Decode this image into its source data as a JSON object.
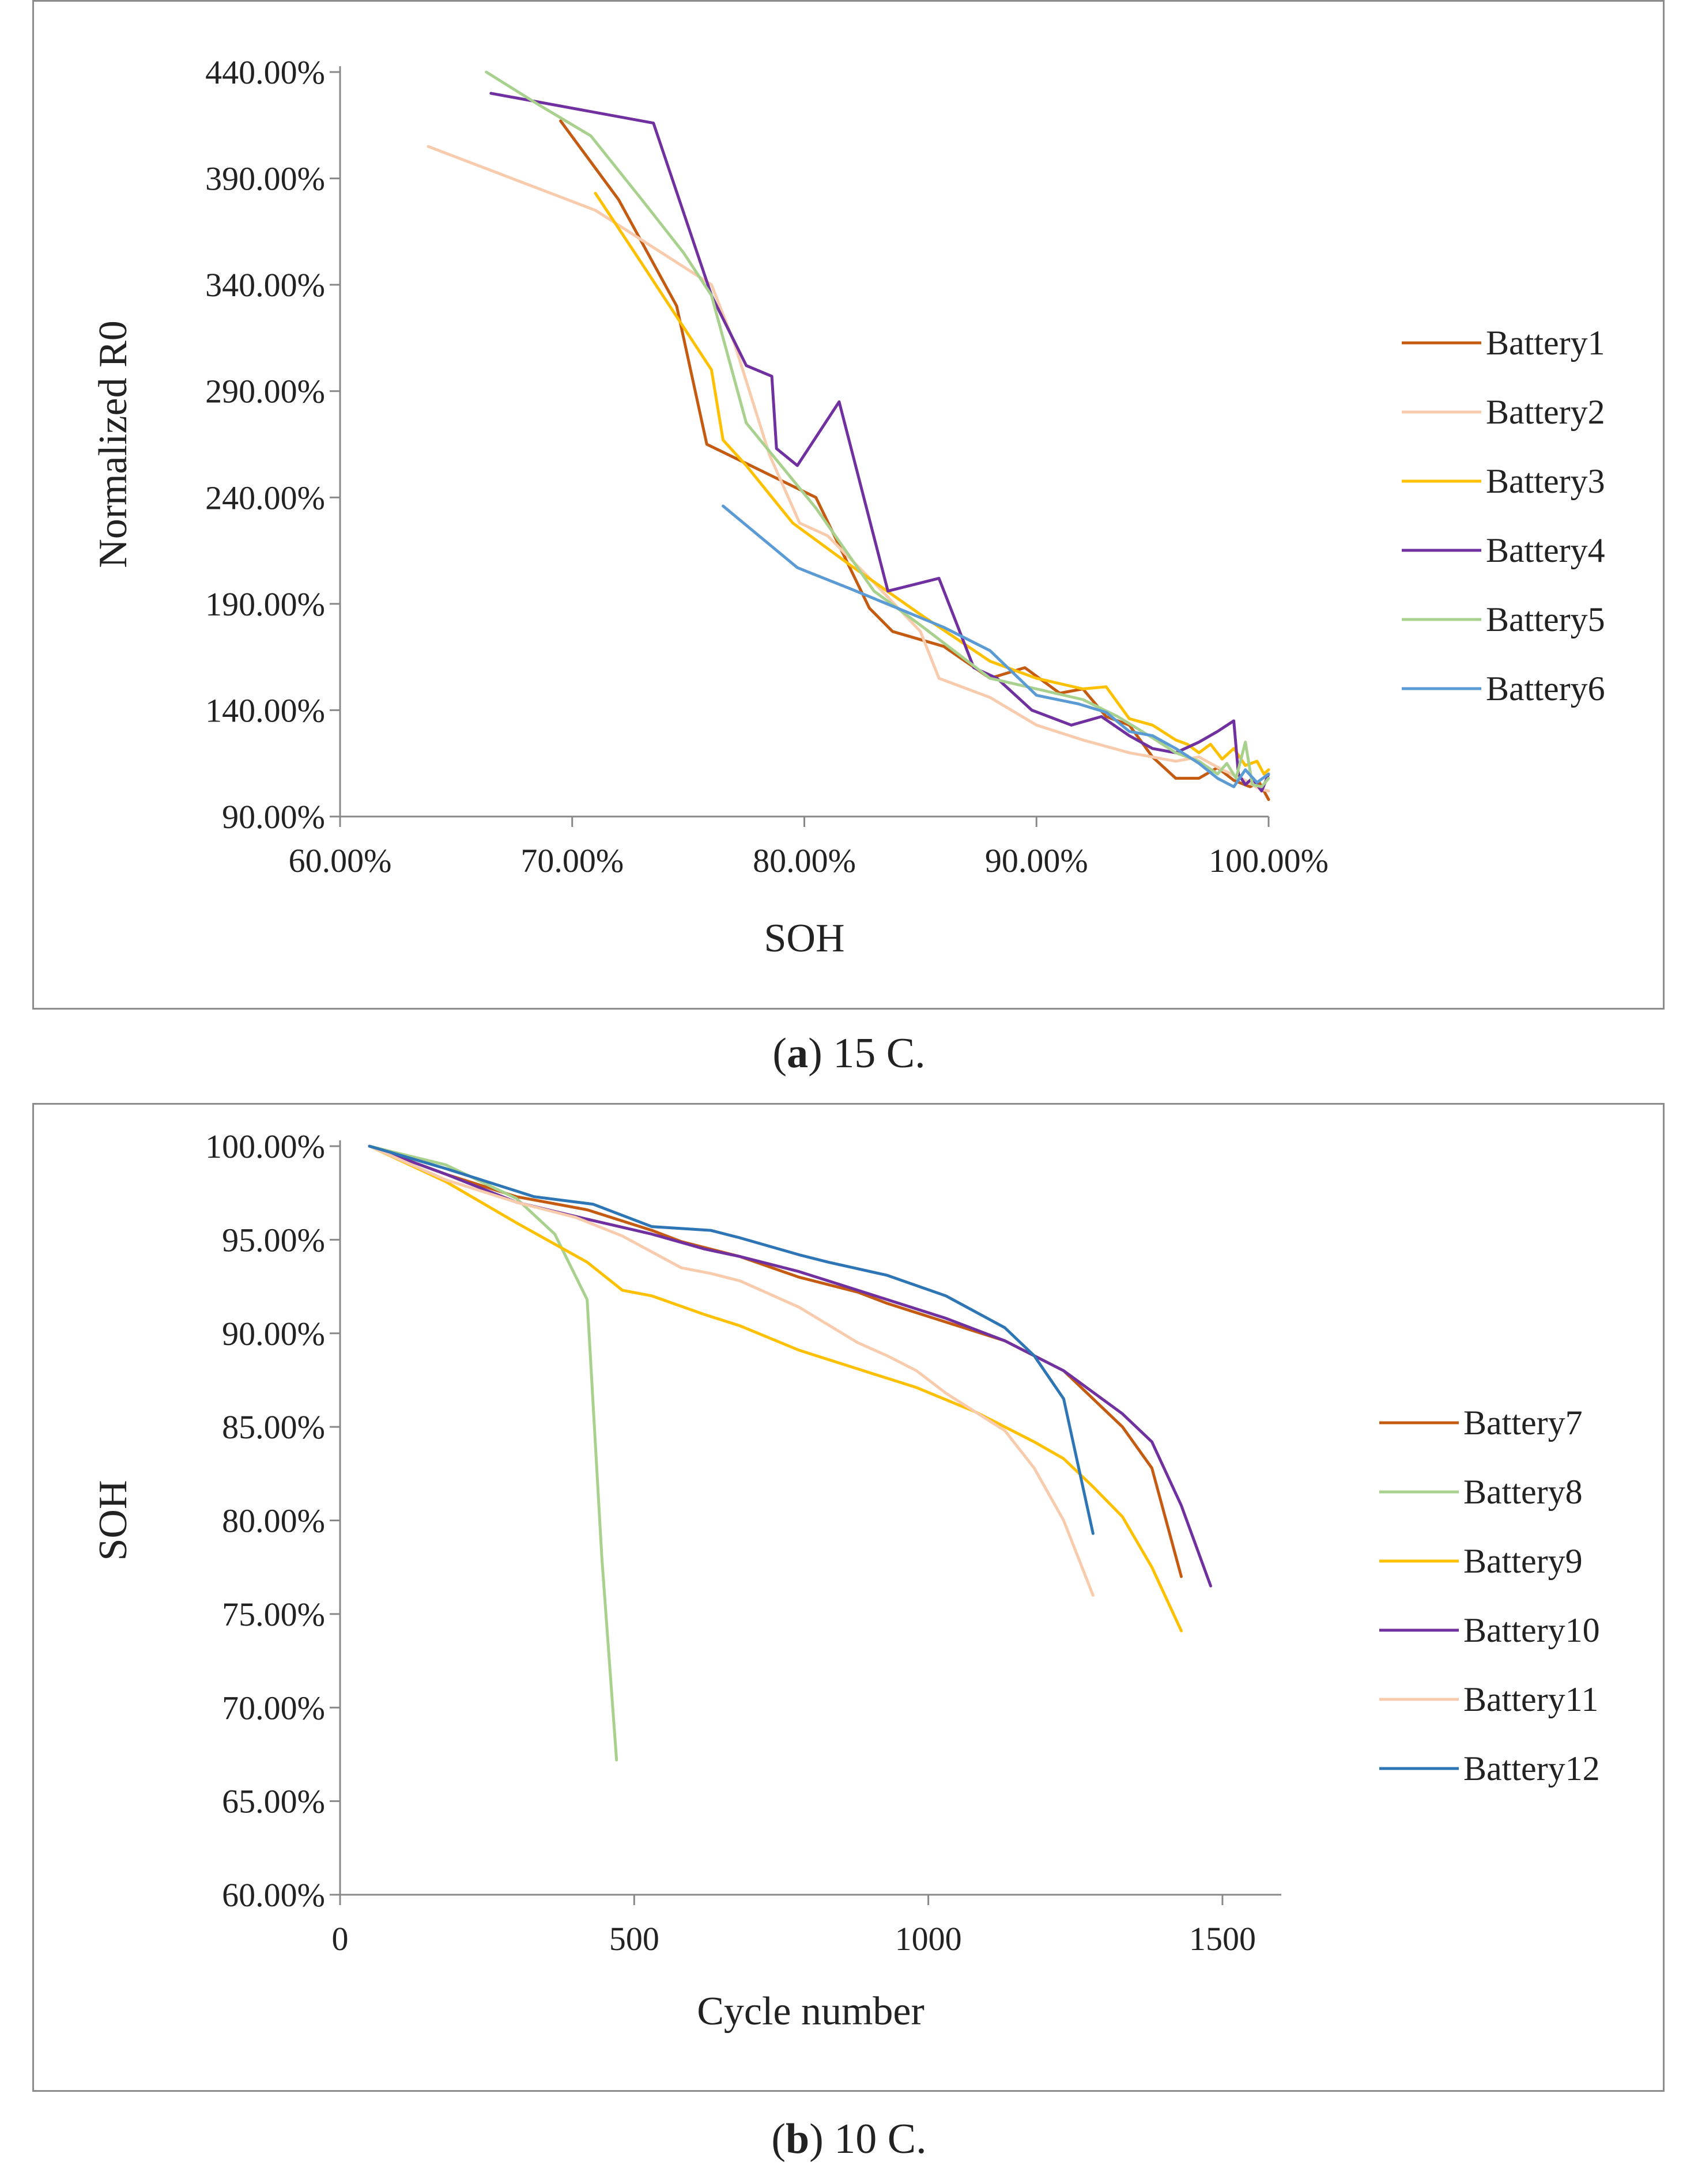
{
  "chart_data": [
    {
      "type": "line",
      "panel": "a",
      "xlabel": "SOH",
      "ylabel": "Normalized R0",
      "xlim": [
        60,
        100
      ],
      "ylim": [
        90,
        440
      ],
      "xticks": [
        60,
        70,
        80,
        90,
        100
      ],
      "yticks": [
        90,
        140,
        190,
        240,
        290,
        340,
        390,
        440
      ],
      "xtick_labels": [
        "60.00%",
        "70.00%",
        "80.00%",
        "90.00%",
        "100.00%"
      ],
      "ytick_labels": [
        "90.00%",
        "140.00%",
        "190.00%",
        "240.00%",
        "290.00%",
        "340.00%",
        "390.00%",
        "440.00%"
      ],
      "legend_position": "right",
      "series": [
        {
          "name": "Battery1",
          "color": "#C55A11",
          "x": [
            69.5,
            72,
            74.5,
            75.8,
            77.5,
            80.5,
            82.8,
            83.8,
            86,
            88,
            89.5,
            91,
            92,
            93,
            94,
            95,
            96,
            97,
            97.8,
            98.5,
            99.2,
            99.6,
            100
          ],
          "y": [
            417,
            380,
            330,
            265,
            256,
            240,
            188,
            177,
            170,
            155,
            160,
            148,
            150,
            137,
            133,
            118,
            108,
            108,
            113,
            107,
            104,
            106,
            98
          ]
        },
        {
          "name": "Battery2",
          "color": "#F8CBAD",
          "x": [
            63.8,
            71,
            76,
            77,
            78.5,
            79.8,
            81,
            83,
            85,
            85.8,
            88,
            90,
            92,
            94,
            96,
            97,
            98,
            99,
            99.6,
            100
          ],
          "y": [
            405,
            375,
            340,
            312,
            260,
            228,
            222,
            200,
            177,
            155,
            146,
            133,
            126,
            120,
            116,
            118,
            112,
            107,
            103,
            102
          ]
        },
        {
          "name": "Battery3",
          "color": "#FFC000",
          "x": [
            71,
            73,
            74.5,
            76,
            76.5,
            77.5,
            79.5,
            82,
            85,
            88,
            90,
            92,
            93,
            94,
            95,
            96,
            96.5,
            97,
            97.5,
            98,
            98.5,
            99,
            99.5,
            99.8,
            100
          ],
          "y": [
            383,
            350,
            325,
            300,
            267,
            255,
            228,
            208,
            185,
            163,
            155,
            150,
            151,
            136,
            133,
            126,
            124,
            120,
            124,
            117,
            122,
            114,
            116,
            110,
            112
          ]
        },
        {
          "name": "Battery4",
          "color": "#7030A0",
          "x": [
            66.5,
            73.5,
            76,
            77.5,
            78.6,
            78.8,
            79.7,
            81.5,
            83.6,
            85.8,
            87.3,
            88.3,
            89.8,
            91.5,
            92.8,
            94,
            95,
            96,
            97,
            97.8,
            98.5,
            98.7,
            99,
            99.3,
            99.7,
            100
          ],
          "y": [
            430,
            416,
            335,
            302,
            297,
            263,
            255,
            285,
            196,
            202,
            160,
            155,
            140,
            133,
            137,
            128,
            122,
            120,
            125,
            130,
            135,
            110,
            105,
            108,
            102,
            110
          ]
        },
        {
          "name": "Battery5",
          "color": "#A9D18E",
          "x": [
            66.3,
            68.5,
            70.8,
            73,
            74.8,
            76,
            77.5,
            80.5,
            83,
            85,
            88,
            90,
            92,
            93.5,
            95,
            96,
            97,
            97.8,
            98.2,
            98.6,
            99,
            99.3,
            99.7,
            100
          ],
          "y": [
            440,
            425,
            410,
            380,
            355,
            335,
            275,
            235,
            196,
            180,
            155,
            150,
            145,
            137,
            127,
            120,
            116,
            110,
            115,
            108,
            125,
            105,
            104,
            108
          ]
        },
        {
          "name": "Battery6",
          "color": "#5B9BD5",
          "x": [
            76.5,
            79.7,
            82,
            84,
            86,
            88,
            90,
            91.8,
            93,
            94,
            95,
            96,
            97,
            97.8,
            98.5,
            99,
            99.5,
            100
          ],
          "y": [
            236,
            207,
            197,
            188,
            179,
            168,
            147,
            143,
            139,
            130,
            128,
            122,
            115,
            108,
            104,
            112,
            106,
            110
          ]
        }
      ]
    },
    {
      "type": "line",
      "panel": "b",
      "xlabel": "Cycle number",
      "ylabel": "SOH",
      "xlim": [
        0,
        1600
      ],
      "ylim": [
        60,
        100
      ],
      "xticks": [
        0,
        500,
        1000,
        1500
      ],
      "yticks": [
        60,
        65,
        70,
        75,
        80,
        85,
        90,
        95,
        100
      ],
      "xtick_labels": [
        "0",
        "500",
        "1000",
        "1500"
      ],
      "ytick_labels": [
        "60.00%",
        "65.00%",
        "70.00%",
        "75.00%",
        "80.00%",
        "85.00%",
        "90.00%",
        "95.00%",
        "100.00%"
      ],
      "legend_position": "right",
      "series": [
        {
          "name": "Battery7",
          "color": "#C55A11",
          "x": [
            50,
            180,
            300,
            420,
            530,
            580,
            680,
            780,
            880,
            930,
            1030,
            1130,
            1230,
            1330,
            1380,
            1430
          ],
          "y": [
            100,
            98.5,
            97.3,
            96.6,
            95.5,
            94.9,
            94.1,
            93,
            92.2,
            91.6,
            90.6,
            89.6,
            88,
            85,
            82.8,
            77
          ]
        },
        {
          "name": "Battery8",
          "color": "#A9D18E",
          "x": [
            50,
            180,
            300,
            365,
            420,
            445,
            470
          ],
          "y": [
            100,
            99,
            97.2,
            95.3,
            91.8,
            78,
            67.2
          ]
        },
        {
          "name": "Battery9",
          "color": "#FFC000",
          "x": [
            50,
            180,
            300,
            420,
            480,
            530,
            620,
            680,
            780,
            880,
            980,
            1080,
            1180,
            1230,
            1280,
            1330,
            1380,
            1430
          ],
          "y": [
            100,
            98.1,
            95.9,
            93.8,
            92.3,
            92,
            91,
            90.4,
            89.1,
            88.1,
            87.1,
            85.8,
            84.2,
            83.3,
            81.8,
            80.2,
            77.5,
            74.1
          ]
        },
        {
          "name": "Battery10",
          "color": "#7030A0",
          "x": [
            50,
            180,
            300,
            420,
            530,
            620,
            680,
            730,
            780,
            830,
            930,
            1030,
            1130,
            1230,
            1330,
            1380,
            1430,
            1480
          ],
          "y": [
            100,
            98.5,
            97,
            96.1,
            95.3,
            94.5,
            94.1,
            93.7,
            93.3,
            92.8,
            91.8,
            90.8,
            89.6,
            88,
            85.7,
            84.2,
            80.8,
            76.5
          ]
        },
        {
          "name": "Battery11",
          "color": "#F8CBAD",
          "x": [
            50,
            180,
            300,
            400,
            480,
            580,
            630,
            680,
            780,
            880,
            930,
            980,
            1030,
            1130,
            1180,
            1230,
            1280
          ],
          "y": [
            100,
            98.2,
            97,
            96.2,
            95.2,
            93.5,
            93.2,
            92.8,
            91.4,
            89.5,
            88.8,
            88,
            86.8,
            84.8,
            82.8,
            80,
            76
          ]
        },
        {
          "name": "Battery12",
          "color": "#2E75B6",
          "x": [
            50,
            180,
            330,
            430,
            530,
            630,
            680,
            780,
            830,
            930,
            1030,
            1130,
            1180,
            1230,
            1280
          ],
          "y": [
            100,
            98.8,
            97.3,
            96.9,
            95.7,
            95.5,
            95.1,
            94.2,
            93.8,
            93.1,
            92,
            90.3,
            88.8,
            86.5,
            79.3
          ]
        }
      ]
    }
  ],
  "captions": {
    "a_letter": "a",
    "a_text": " 15 C.",
    "b_letter": "b",
    "b_text": " 10 C."
  }
}
